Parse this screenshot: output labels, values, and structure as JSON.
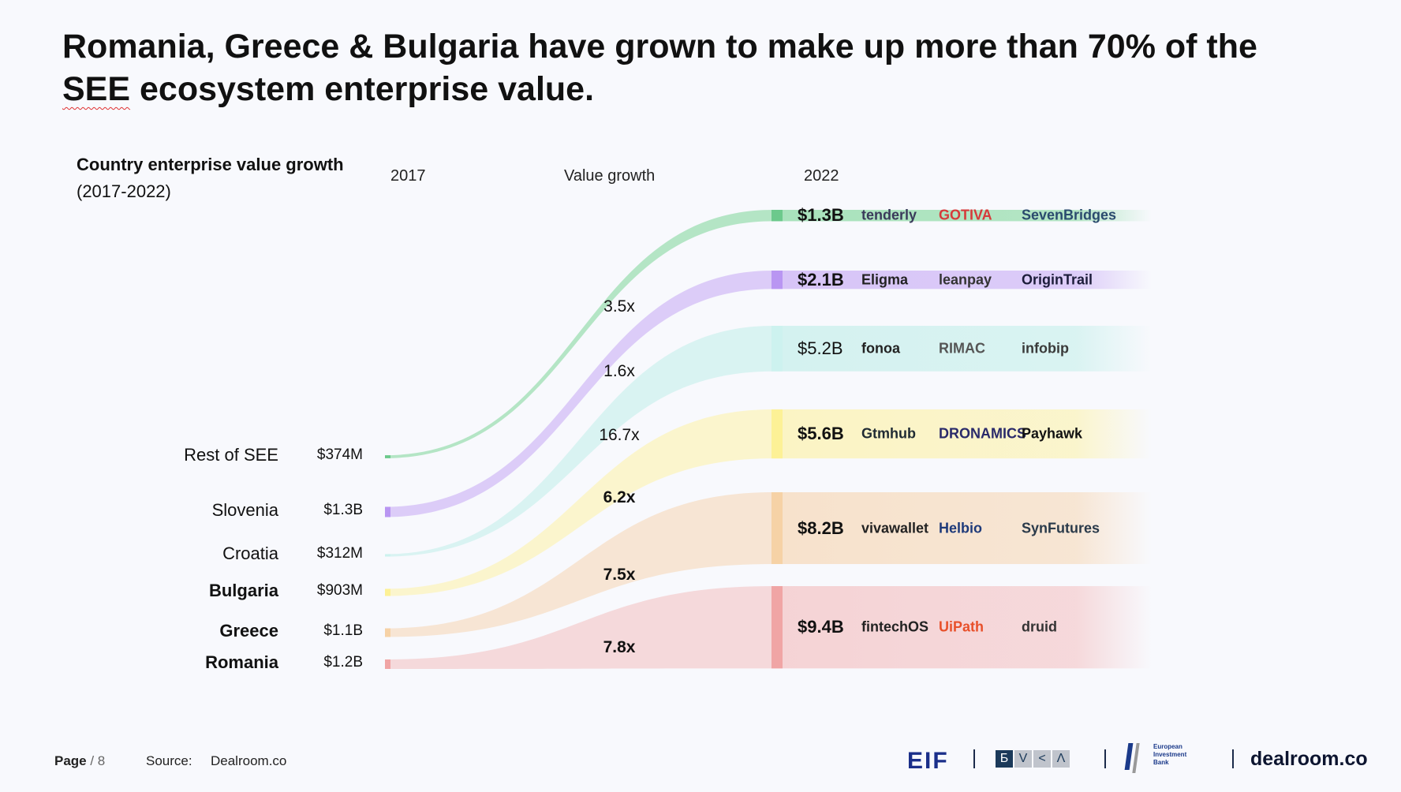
{
  "title_parts": {
    "pre": "Romania, Greece & Bulgaria have grown to make up more than 70% of the ",
    "see": "SEE",
    "post": " ecosystem enterprise value."
  },
  "subtitle": {
    "bold": "Country enterprise value growth",
    "range": "(2017-2022)"
  },
  "column_headers": {
    "left": "2017",
    "middle": "Value growth",
    "right": "2022"
  },
  "chart_data": {
    "type": "sankey",
    "title": "Country enterprise value growth",
    "subtitle": "(2017-2022)",
    "series": [
      {
        "name": "Rest of SEE",
        "value_2017": "$374M",
        "value_2017_b": 0.374,
        "growth": "3.5x",
        "value_2022": "$1.3B",
        "value_2022_b": 1.3,
        "bold": false,
        "color": "#a8e2bb",
        "bar_color": "#6cc98c",
        "companies": [
          "tenderly",
          "GOTIVA",
          "SevenBridges"
        ]
      },
      {
        "name": "Slovenia",
        "value_2017": "$1.3B",
        "value_2017_b": 1.3,
        "growth": "1.6x",
        "value_2022": "$2.1B",
        "value_2022_b": 2.1,
        "bold": false,
        "color": "#d7c4f7",
        "bar_color": "#b996f2",
        "companies": [
          "Eligma",
          "leanpay",
          "OriginTrail"
        ]
      },
      {
        "name": "Croatia",
        "value_2017": "$312M",
        "value_2017_b": 0.312,
        "growth": "16.7x",
        "value_2022": "$5.2B",
        "value_2022_b": 5.2,
        "bold": false,
        "color": "#d4f2f0",
        "bar_color": "#cdf2ef",
        "companies": [
          "fonoa",
          "RIMAC",
          "infobip"
        ]
      },
      {
        "name": "Bulgaria",
        "value_2017": "$903M",
        "value_2017_b": 0.903,
        "growth": "6.2x",
        "value_2022": "$5.6B",
        "value_2022_b": 5.6,
        "bold": true,
        "color": "#fbf4c4",
        "bar_color": "#fdf196",
        "companies": [
          "Gtmhub",
          "DRONAMICS",
          "Payhawk"
        ]
      },
      {
        "name": "Greece",
        "value_2017": "$1.1B",
        "value_2017_b": 1.1,
        "growth": "7.5x",
        "value_2022": "$8.2B",
        "value_2022_b": 8.2,
        "bold": true,
        "color": "#f7e2cc",
        "bar_color": "#f6d2a6",
        "companies": [
          "vivawallet",
          "Helbio",
          "SynFutures"
        ]
      },
      {
        "name": "Romania",
        "value_2017": "$1.2B",
        "value_2017_b": 1.2,
        "growth": "7.8x",
        "value_2022": "$9.4B",
        "value_2022_b": 9.4,
        "bold": true,
        "color": "#f5d3d5",
        "bar_color": "#f0a5a5",
        "companies": [
          "fintechOS",
          "UiPath",
          "druid"
        ]
      }
    ]
  },
  "logo_colors": {
    "tenderly": "#3a3a5a",
    "GOTIVA": "#d63a3a",
    "SevenBridges": "#2b4b6e",
    "Eligma": "#222",
    "leanpay": "#333",
    "OriginTrail": "#1c1c3a",
    "fonoa": "#222",
    "RIMAC": "#555",
    "infobip": "#3a3a3a",
    "Gtmhub": "#1f2a33",
    "DRONAMICS": "#2a2a6a",
    "Payhawk": "#111",
    "vivawallet": "#222",
    "Helbio": "#1e3a7a",
    "SynFutures": "#2a3a4a",
    "fintechOS": "#222",
    "UiPath": "#e8502a",
    "druid": "#333"
  },
  "footer": {
    "page_label": "Page",
    "page_sep": " / 8",
    "source_label": "Source:",
    "source_value": "Dealroom.co",
    "brand": "dealroom.co",
    "partner_eif": "EIF",
    "partner_bvca": [
      "Б",
      "V",
      "<",
      "Λ"
    ],
    "partner_eib": [
      "European",
      "Investment",
      "Bank"
    ]
  }
}
